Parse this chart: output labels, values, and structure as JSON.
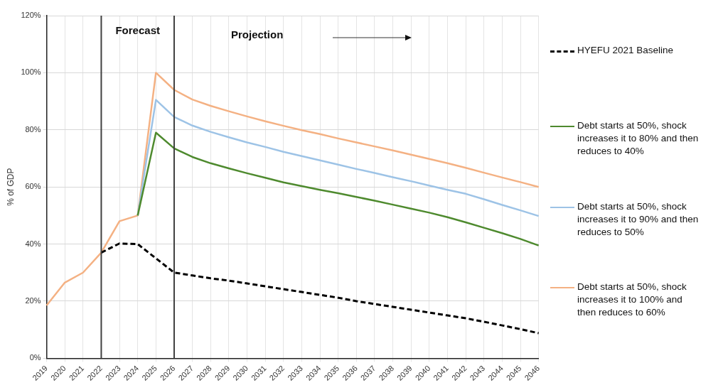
{
  "chart_data": {
    "type": "line",
    "ylabel": "% of GDP",
    "categories": [
      "2019",
      "2020",
      "2021",
      "2022",
      "2023",
      "2024",
      "2025",
      "2026",
      "2027",
      "2028",
      "2029",
      "2030",
      "2031",
      "2032",
      "2033",
      "2034",
      "2035",
      "2036",
      "2037",
      "2038",
      "2039",
      "2040",
      "2041",
      "2042",
      "2043",
      "2044",
      "2045",
      "2046"
    ],
    "ylim": [
      0,
      120
    ],
    "yticks": [
      {
        "value": 0,
        "label": "0%"
      },
      {
        "value": 20,
        "label": "20%"
      },
      {
        "value": 40,
        "label": "40%"
      },
      {
        "value": 60,
        "label": "60%"
      },
      {
        "value": 80,
        "label": "80%"
      },
      {
        "value": 100,
        "label": "100%"
      },
      {
        "value": 120,
        "label": "120%"
      }
    ],
    "grid": true,
    "legend": "right",
    "marker": "none",
    "series": [
      {
        "name": "HYEFU 2021 Baseline",
        "color": "#000000",
        "line_style": "dashed",
        "values": [
          null,
          null,
          null,
          37,
          40.2,
          40,
          35,
          30,
          29,
          28,
          27.2,
          26.2,
          25.2,
          24.2,
          23.2,
          22.2,
          21.2,
          20,
          19,
          18,
          17,
          16,
          15,
          14,
          12.8,
          11.5,
          10.2,
          8.8
        ]
      },
      {
        "name": "Debt starts at 50%, shock increases it to 80% and then reduces to 40%",
        "color": "#4e8a2e",
        "line_style": "solid",
        "values": [
          null,
          null,
          null,
          null,
          null,
          50,
          79,
          73.5,
          70.5,
          68.3,
          66.5,
          64.8,
          63.2,
          61.6,
          60.3,
          59,
          57.8,
          56.5,
          55.2,
          53.8,
          52.4,
          51,
          49.4,
          47.6,
          45.7,
          43.8,
          41.8,
          39.5
        ]
      },
      {
        "name": "Debt starts at 50%, shock increases it to 90% and then reduces to 50%",
        "color": "#9dc3e6",
        "line_style": "solid",
        "values": [
          null,
          null,
          null,
          null,
          null,
          50,
          90.5,
          84.5,
          81.5,
          79.3,
          77.4,
          75.6,
          74,
          72.3,
          70.8,
          69.3,
          67.8,
          66.3,
          64.9,
          63.4,
          62,
          60.5,
          59,
          57.6,
          55.7,
          53.7,
          51.8,
          49.8
        ]
      },
      {
        "name": "Debt starts at 50%, shock increases it to 100% and then reduces to 60%",
        "color": "#f4b183",
        "line_style": "solid",
        "values": [
          18.5,
          26.5,
          30,
          37,
          48,
          50,
          100,
          94,
          90.6,
          88.4,
          86.5,
          84.7,
          83,
          81.4,
          79.9,
          78.5,
          77,
          75.6,
          74.2,
          72.8,
          71.3,
          69.8,
          68.3,
          66.7,
          65,
          63.3,
          61.7,
          60
        ]
      }
    ],
    "ref_lines": [
      {
        "axis": "x",
        "value": "2022",
        "color": "#404040"
      },
      {
        "axis": "x",
        "value": "2026",
        "color": "#404040"
      }
    ],
    "annotations": [
      "Forecast",
      "Projection"
    ]
  }
}
